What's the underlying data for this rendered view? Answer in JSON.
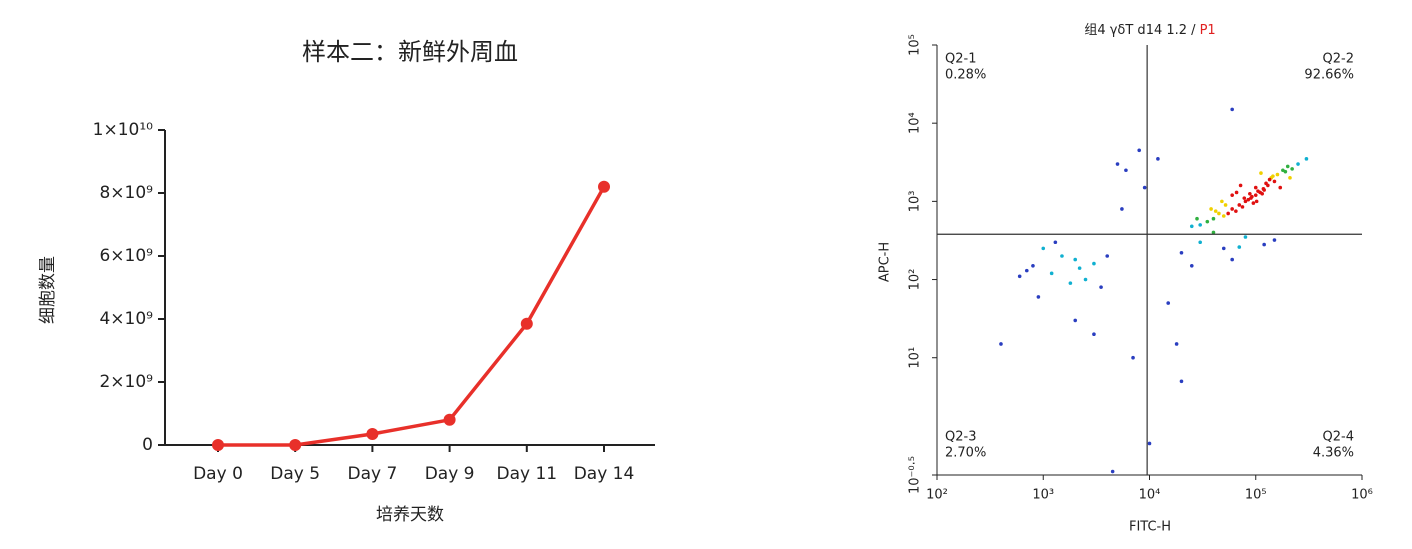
{
  "chart_data": [
    {
      "type": "line",
      "title": "样本二：新鲜外周血",
      "xlabel": "培养天数",
      "ylabel": "细胞数量",
      "categories": [
        "Day 0",
        "Day 5",
        "Day 7",
        "Day 9",
        "Day 11",
        "Day 14"
      ],
      "values": [
        0,
        0,
        350000000,
        800000000,
        3850000000,
        8200000000
      ],
      "color": "#e8302a",
      "ylim": [
        0,
        10000000000
      ],
      "yticks": [
        0,
        {
          "value": 2000000000,
          "label": "2×10⁹"
        },
        {
          "value": 4000000000,
          "label": "4×10⁹"
        },
        {
          "value": 6000000000,
          "label": "6×10⁹"
        },
        {
          "value": 8000000000,
          "label": "8×10⁹"
        },
        {
          "value": 10000000000,
          "label": "1×10¹⁰"
        }
      ]
    },
    {
      "type": "scatter",
      "title": "组4 γδT d14 1.2 /",
      "title_highlight": "P1",
      "title_highlight_color": "#e02020",
      "xlabel": "FITC-H",
      "ylabel": "APC-H",
      "log_x": true,
      "log_y": true,
      "xlim": [
        100,
        1000000
      ],
      "xticks": [
        {
          "value": 100,
          "label": "10²"
        },
        {
          "value": 1000,
          "label": "10³"
        },
        {
          "value": 10000,
          "label": "10⁴"
        },
        {
          "value": 100000,
          "label": "10⁵"
        },
        {
          "value": 1000000,
          "label": "10⁶"
        }
      ],
      "ylim": [
        0.31623,
        100000
      ],
      "yticks": [
        {
          "value": 0.31623,
          "label": "10⁻⁰·⁵"
        },
        {
          "value": 10,
          "label": "10¹"
        },
        {
          "value": 100,
          "label": "10²"
        },
        {
          "value": 1000,
          "label": "10³"
        },
        {
          "value": 10000,
          "label": "10⁴"
        },
        {
          "value": 100000,
          "label": "10⁵"
        }
      ],
      "gates": {
        "x": 9500,
        "y": 380
      },
      "quadrants": {
        "names": [
          "Q2-1",
          "Q2-2",
          "Q2-3",
          "Q2-4"
        ],
        "values": [
          0.28,
          92.66,
          2.7,
          4.36
        ],
        "value_labels": [
          "0.28%",
          "92.66%",
          "2.70%",
          "4.36%"
        ]
      },
      "colormap": [
        "#e01010",
        "#f0d000",
        "#30b040",
        "#10b0d0",
        "#2a3ec0"
      ],
      "x": [
        100000,
        120000,
        80000,
        110000,
        90000,
        130000,
        70000,
        150000,
        60000,
        100000,
        140000,
        85000,
        115000,
        95000,
        125000,
        75000,
        105000,
        160000,
        55000,
        180000,
        65000,
        200000,
        50000,
        135000,
        92000,
        118000,
        88000,
        102000,
        145000,
        78000,
        40000,
        35000,
        45000,
        30000,
        250000,
        220000,
        170000,
        60000,
        25000,
        38000,
        48000,
        300000,
        210000,
        190000,
        66000,
        52000,
        42000,
        28000,
        72000,
        112000,
        30000,
        50000,
        80000,
        120000,
        20000,
        40000,
        60000,
        150000,
        25000,
        70000,
        800,
        1200,
        1500,
        2000,
        2500,
        3000,
        1000,
        1800,
        2200,
        700,
        1300,
        4000,
        3500,
        600,
        900,
        5000,
        8000,
        6000,
        12000,
        15000,
        3000,
        20000,
        7000,
        10000,
        4500,
        18000,
        9000,
        2000,
        5500,
        60000,
        400
      ],
      "y": [
        1200,
        1400,
        1000,
        1300,
        1100,
        1600,
        900,
        1800,
        800,
        1500,
        2000,
        1050,
        1250,
        950,
        1700,
        850,
        1350,
        2200,
        700,
        2500,
        750,
        2800,
        650,
        1900,
        1150,
        1450,
        1250,
        1000,
        2100,
        1100,
        600,
        550,
        700,
        500,
        3000,
        2600,
        1500,
        1200,
        480,
        800,
        1000,
        3500,
        2000,
        2400,
        1300,
        900,
        750,
        600,
        1600,
        2300,
        300,
        250,
        350,
        280,
        220,
        400,
        180,
        320,
        150,
        260,
        150,
        120,
        200,
        180,
        100,
        160,
        250,
        90,
        140,
        130,
        300,
        200,
        80,
        110,
        60,
        3000,
        4500,
        2500,
        3500,
        50,
        20,
        5,
        10,
        0.8,
        0.35,
        15,
        1500,
        30,
        800,
        15000,
        15
      ]
    }
  ]
}
